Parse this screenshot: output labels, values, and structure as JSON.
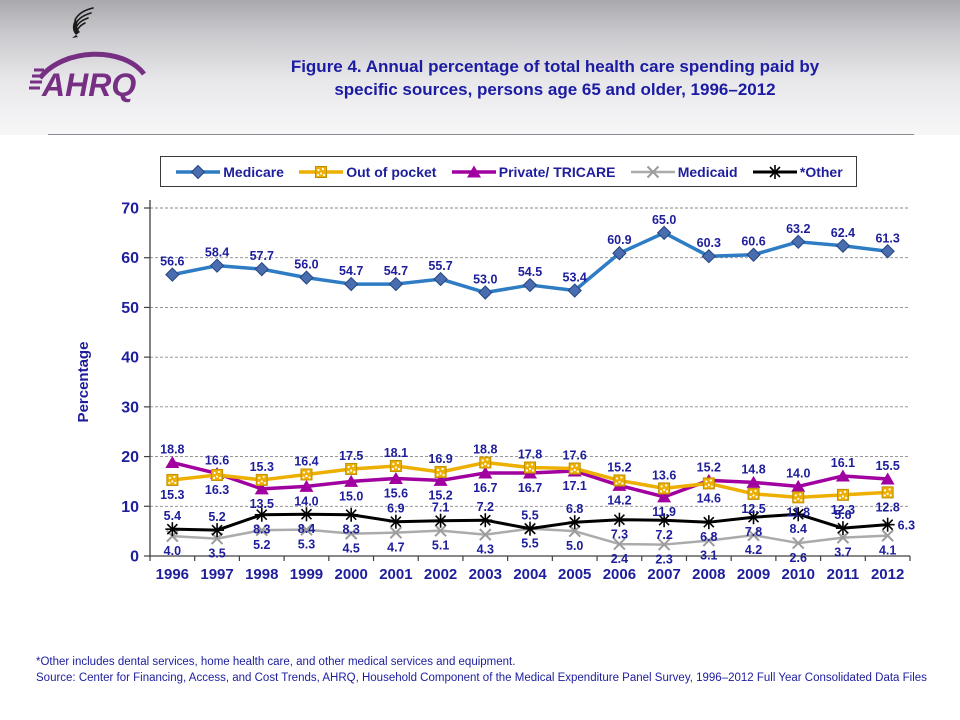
{
  "header": {
    "logo_text": "AHRQ",
    "title_line1": "Figure 4. Annual percentage of total health care spending paid by",
    "title_line2": "specific sources, persons age 65 and older, 1996–2012"
  },
  "chart_data": {
    "type": "line",
    "title": "Figure 4. Annual percentage of total health care spending paid by specific sources, persons age 65 and older, 1996–2012",
    "xlabel": "",
    "ylabel": "Percentage",
    "ylim": [
      0,
      70
    ],
    "yticks": [
      0,
      10,
      20,
      30,
      40,
      50,
      60,
      70
    ],
    "grid": true,
    "legend_position": "top",
    "label_color": "#1e1e9c",
    "axis_color": "#404040",
    "gridline_color": "#8a8a8a",
    "categories": [
      "1996",
      "1997",
      "1998",
      "1999",
      "2000",
      "2001",
      "2002",
      "2003",
      "2004",
      "2005",
      "2006",
      "2007",
      "2008",
      "2009",
      "2010",
      "2011",
      "2012"
    ],
    "series": [
      {
        "name": "Medicare",
        "marker": "diamond",
        "color": "#2e7cc4",
        "marker_color": "#4a6db0",
        "values": [
          56.6,
          58.4,
          57.7,
          56.0,
          54.7,
          54.7,
          55.7,
          53.0,
          54.5,
          53.4,
          60.9,
          65.0,
          60.3,
          60.6,
          63.2,
          62.4,
          61.3
        ]
      },
      {
        "name": "Out of pocket",
        "marker": "square",
        "color": "#edaf00",
        "marker_color": "#edaf00",
        "values": [
          15.3,
          16.3,
          15.3,
          16.4,
          17.5,
          18.1,
          16.9,
          18.8,
          17.8,
          17.6,
          15.2,
          13.6,
          14.6,
          12.5,
          11.8,
          12.3,
          12.8
        ]
      },
      {
        "name": "Private/ TRICARE",
        "marker": "triangle",
        "color": "#a000a0",
        "marker_color": "#a000a0",
        "values": [
          18.8,
          16.6,
          13.5,
          14.0,
          15.0,
          15.6,
          15.2,
          16.7,
          16.7,
          17.1,
          14.2,
          11.9,
          15.2,
          14.8,
          14.0,
          16.1,
          15.5
        ]
      },
      {
        "name": "Medicaid",
        "marker": "x",
        "color": "#ababab",
        "marker_color": "#9c9c9c",
        "values": [
          4.0,
          3.5,
          5.2,
          5.3,
          4.5,
          4.7,
          5.1,
          4.3,
          5.5,
          5.0,
          2.4,
          2.3,
          3.1,
          4.2,
          2.6,
          3.7,
          4.1
        ]
      },
      {
        "name": "*Other",
        "marker": "asterisk",
        "color": "#000000",
        "marker_color": "#000000",
        "values": [
          5.4,
          5.2,
          8.3,
          8.4,
          8.3,
          6.9,
          7.1,
          7.2,
          5.5,
          6.8,
          7.3,
          7.2,
          6.8,
          7.8,
          8.4,
          5.6,
          6.3
        ]
      }
    ]
  },
  "footnote": {
    "line1": "*Other includes dental services, home health care, and other medical services and equipment.",
    "line2": "Source: Center for Financing, Access, and Cost Trends, AHRQ, Household Component of the Medical Expenditure Panel Survey,  1996–2012 Full Year Consolidated Data Files"
  }
}
